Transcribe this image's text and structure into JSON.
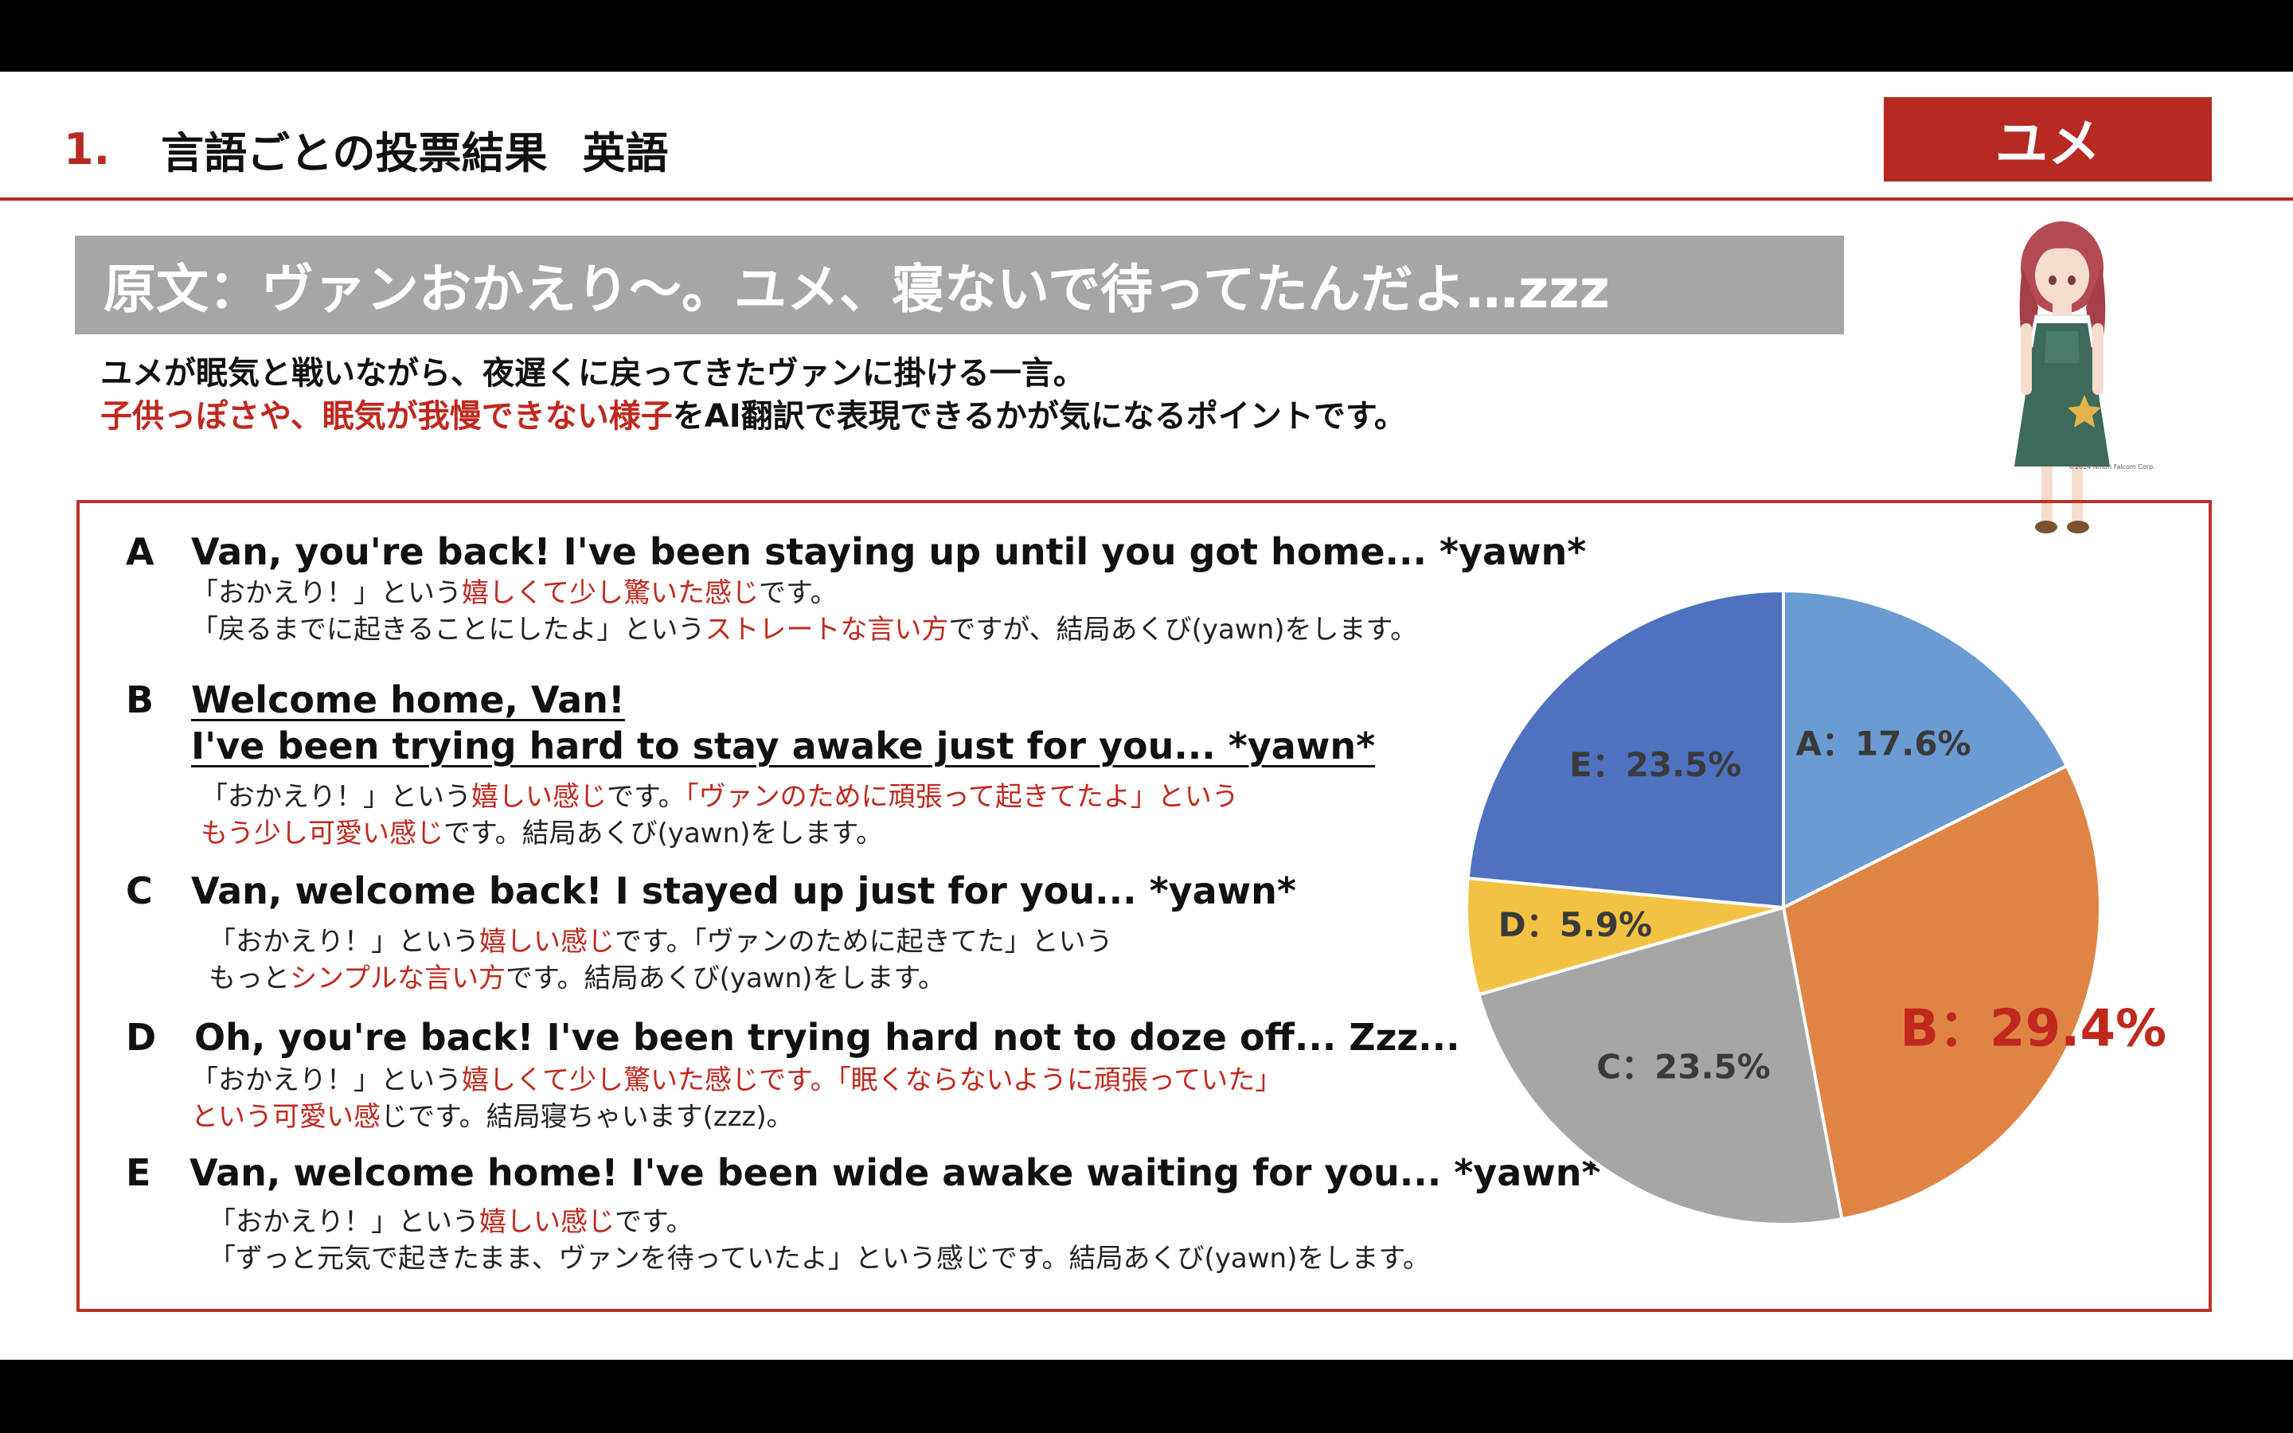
{
  "header": {
    "number": "1.",
    "title": "言語ごとの投票結果",
    "language": "英語",
    "character_badge": "ユメ"
  },
  "source": {
    "text": "原文：ヴァンおかえり～。ユメ、寝ないで待ってたんだよ…zzz"
  },
  "intro": {
    "line1": "ユメが眠気と戦いながら、夜遅くに戻ってきたヴァンに掛ける一言。",
    "line2_red": "子供っぽさや、眠気が我慢できない様子",
    "line2_rest": "をAI翻訳で表現できるかが気になるポイントです。"
  },
  "character_copyright": "©2024 Nihon Falcom Corp.",
  "options": [
    {
      "letter": "A",
      "text": "Van, you're back! I've been staying up until you got home... *yawn*",
      "desc": [
        [
          {
            "t": "「おかえり！」という"
          },
          {
            "t": "嬉しくて少し驚いた感じ",
            "red": true
          },
          {
            "t": "です。"
          }
        ],
        [
          {
            "t": "「戻るまでに起きることにしたよ」という"
          },
          {
            "t": "ストレートな言い方",
            "red": true
          },
          {
            "t": "ですが、結局あくび(yawn)をします。"
          }
        ]
      ]
    },
    {
      "letter": "B",
      "text": "Welcome home, Van!",
      "text2": "I've been trying hard to stay awake just for you... *yawn*",
      "desc": [
        [
          {
            "t": "「おかえり！」という"
          },
          {
            "t": "嬉しい感じ",
            "red": true
          },
          {
            "t": "です。"
          },
          {
            "t": "「ヴァンのために頑張って起きてたよ」という",
            "red": true
          }
        ],
        [
          {
            "t": "もう少し可愛い感じ",
            "red": true
          },
          {
            "t": "です。結局あくび(yawn)をします。"
          }
        ]
      ]
    },
    {
      "letter": "C",
      "text": "Van, welcome back! I stayed up just for you... *yawn*",
      "desc": [
        [
          {
            "t": "「おかえり！」という"
          },
          {
            "t": "嬉しい感じ",
            "red": true
          },
          {
            "t": "です。「ヴァンのために起きてた」という"
          }
        ],
        [
          {
            "t": "もっと"
          },
          {
            "t": "シンプルな言い方",
            "red": true
          },
          {
            "t": "です。結局あくび(yawn)をします。"
          }
        ]
      ]
    },
    {
      "letter": "D",
      "text": "Oh, you're back!  I've been trying hard not to doze off... Zzz...",
      "desc": [
        [
          {
            "t": "「おかえり！」という"
          },
          {
            "t": "嬉しくて少し驚いた感じです。「眠くならないように頑張っていた」",
            "red": true
          }
        ],
        [
          {
            "t": "という可愛い感",
            "red": true
          },
          {
            "t": "じです。結局寝ちゃいます(zzz)。"
          }
        ]
      ]
    },
    {
      "letter": "E",
      "text": "Van, welcome home! I've been wide awake waiting for you... *yawn*",
      "desc": [
        [
          {
            "t": "「おかえり！」という"
          },
          {
            "t": "嬉しい感じ",
            "red": true
          },
          {
            "t": "です。"
          }
        ],
        [
          {
            "t": "「ずっと元気で起きたまま、ヴァンを待っていたよ」という感じです。結局あくび(yawn)をします。"
          }
        ]
      ]
    }
  ],
  "chart_data": {
    "type": "pie",
    "slices": [
      {
        "label": "A：17.6%",
        "value": 17.6,
        "color": "#6a9bd3"
      },
      {
        "label": "B：29.4%",
        "value": 29.4,
        "color": "#e08445",
        "highlight": true
      },
      {
        "label": "C：23.5%",
        "value": 23.5,
        "color": "#a6a6a6"
      },
      {
        "label": "D：5.9%",
        "value": 5.9,
        "color": "#f3c243"
      },
      {
        "label": "E：23.5%",
        "value": 23.5,
        "color": "#4e72bf"
      }
    ]
  }
}
